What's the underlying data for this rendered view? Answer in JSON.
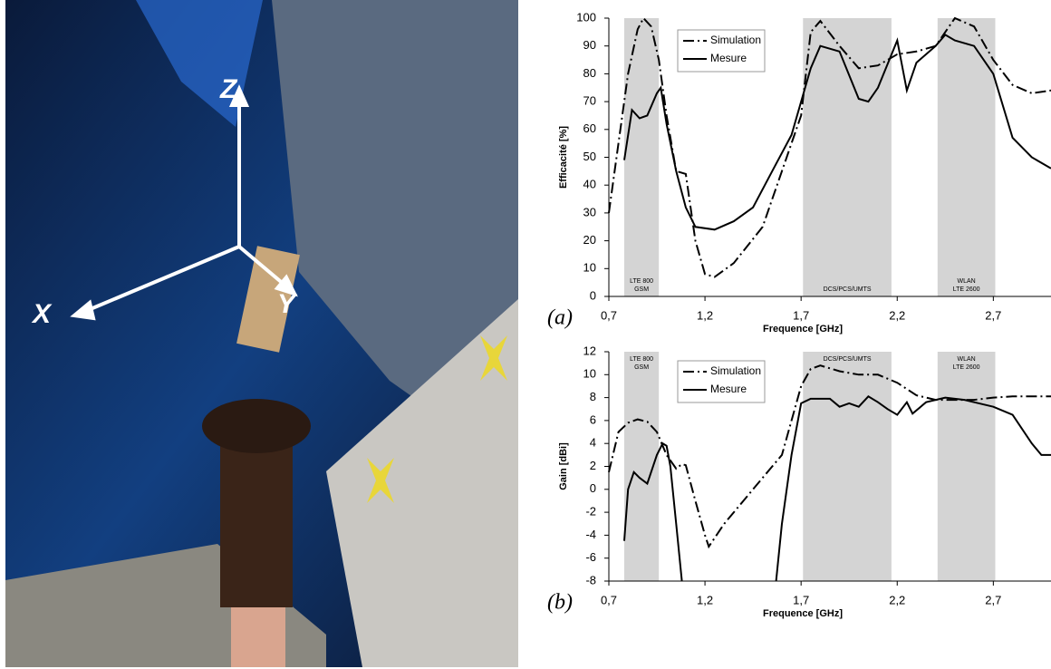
{
  "photo": {
    "axis_labels": [
      "Z",
      "X",
      "Y"
    ]
  },
  "chart_data": [
    {
      "type": "line",
      "panel_label": "(a)",
      "y_label": "Efficacité [%]",
      "x_label": "Frequence [GHz]",
      "xlim": [
        0.7,
        3.0
      ],
      "xticks": [
        {
          "value": 0.7,
          "label": "0,7"
        },
        {
          "value": 1.2,
          "label": "1,2"
        },
        {
          "value": 1.7,
          "label": "1,7"
        },
        {
          "value": 2.2,
          "label": "2,2"
        },
        {
          "value": 2.7,
          "label": "2,7"
        }
      ],
      "ylim": [
        0,
        100
      ],
      "yticks": [
        0,
        10,
        20,
        30,
        40,
        50,
        60,
        70,
        80,
        90,
        100
      ],
      "grid": false,
      "band_label_position": "bottom",
      "band_color": "#d4d4d4",
      "bands": [
        {
          "range": [
            0.78,
            0.96
          ],
          "label": [
            "LTE 800",
            "GSM"
          ]
        },
        {
          "range": [
            1.71,
            2.17
          ],
          "label": [
            "DCS/PCS/UMTS"
          ]
        },
        {
          "range": [
            2.41,
            2.71
          ],
          "label": [
            "WLAN",
            "LTE 2600"
          ]
        }
      ],
      "series": [
        {
          "name": "Simulation",
          "color": "#000000",
          "style": "dash-dot",
          "x": [
            0.7,
            0.75,
            0.8,
            0.85,
            0.88,
            0.92,
            0.96,
            1.0,
            1.05,
            1.1,
            1.15,
            1.2,
            1.25,
            1.35,
            1.5,
            1.6,
            1.7,
            1.75,
            1.8,
            1.9,
            2.0,
            2.1,
            2.2,
            2.3,
            2.4,
            2.5,
            2.6,
            2.7,
            2.8,
            2.9,
            3.0
          ],
          "values": [
            30,
            55,
            80,
            96,
            100,
            97,
            85,
            65,
            45,
            44,
            20,
            8,
            7,
            12,
            25,
            45,
            65,
            95,
            99,
            90,
            82,
            83,
            87,
            88,
            90,
            100,
            97,
            85,
            76,
            73,
            74
          ]
        },
        {
          "name": "Mesure",
          "color": "#000000",
          "style": "solid",
          "x": [
            0.78,
            0.82,
            0.86,
            0.9,
            0.95,
            0.97,
            1.0,
            1.05,
            1.1,
            1.15,
            1.25,
            1.35,
            1.45,
            1.55,
            1.65,
            1.75,
            1.8,
            1.9,
            2.0,
            2.05,
            2.1,
            2.2,
            2.25,
            2.3,
            2.4,
            2.45,
            2.5,
            2.6,
            2.7,
            2.8,
            2.9,
            3.0
          ],
          "values": [
            49,
            67,
            64,
            65,
            73,
            75,
            62,
            45,
            32,
            25,
            24,
            27,
            32,
            45,
            58,
            82,
            90,
            88,
            71,
            70,
            75,
            92,
            74,
            84,
            90,
            94,
            92,
            90,
            80,
            57,
            50,
            46
          ]
        }
      ]
    },
    {
      "type": "line",
      "panel_label": "(b)",
      "y_label": "Gain [dBi]",
      "x_label": "Frequence [GHz]",
      "xlim": [
        0.7,
        3.0
      ],
      "xticks": [
        {
          "value": 0.7,
          "label": "0,7"
        },
        {
          "value": 1.2,
          "label": "1,2"
        },
        {
          "value": 1.7,
          "label": "1,7"
        },
        {
          "value": 2.2,
          "label": "2,2"
        },
        {
          "value": 2.7,
          "label": "2,7"
        }
      ],
      "ylim": [
        -8,
        12
      ],
      "yticks": [
        -8,
        -6,
        -4,
        -2,
        0,
        2,
        4,
        6,
        8,
        10,
        12
      ],
      "grid": false,
      "band_label_position": "top",
      "band_color": "#d4d4d4",
      "bands": [
        {
          "range": [
            0.78,
            0.96
          ],
          "label": [
            "LTE 800",
            "GSM"
          ]
        },
        {
          "range": [
            1.71,
            2.17
          ],
          "label": [
            "DCS/PCS/UMTS"
          ]
        },
        {
          "range": [
            2.41,
            2.71
          ],
          "label": [
            "WLAN",
            "LTE 2600"
          ]
        }
      ],
      "series": [
        {
          "name": "Simulation",
          "color": "#000000",
          "style": "dash-dot",
          "x": [
            0.7,
            0.75,
            0.8,
            0.85,
            0.9,
            0.95,
            1.0,
            1.05,
            1.08,
            1.1,
            1.15,
            1.2,
            1.22,
            1.3,
            1.4,
            1.5,
            1.6,
            1.7,
            1.75,
            1.8,
            1.9,
            2.0,
            2.1,
            2.2,
            2.3,
            2.4,
            2.5,
            2.6,
            2.7,
            2.8,
            2.9,
            3.0
          ],
          "values": [
            1.5,
            5,
            5.8,
            6.1,
            5.9,
            5,
            3,
            1.8,
            2.2,
            2.1,
            -1,
            -4,
            -5,
            -3,
            -1,
            1,
            3,
            9,
            10.5,
            10.8,
            10.3,
            10,
            10,
            9.3,
            8.2,
            7.8,
            7.8,
            7.8,
            8,
            8.1,
            8.1,
            8.1
          ]
        },
        {
          "name": "Mesure",
          "color": "#000000",
          "style": "solid",
          "x": [
            0.78,
            0.8,
            0.83,
            0.86,
            0.9,
            0.95,
            0.98,
            1.0,
            1.02,
            1.05,
            1.08,
            null,
            1.57,
            1.6,
            1.65,
            1.7,
            1.75,
            1.85,
            1.9,
            1.95,
            2.0,
            2.05,
            2.1,
            2.15,
            2.2,
            2.25,
            2.28,
            2.35,
            2.45,
            2.55,
            2.65,
            2.7,
            2.8,
            2.9,
            2.95,
            3.0
          ],
          "values": [
            -4.5,
            0,
            1.5,
            1,
            0.5,
            3,
            4,
            3.8,
            2,
            -3,
            -8,
            null,
            -8,
            -3,
            3,
            7.5,
            7.9,
            7.9,
            7.2,
            7.5,
            7.2,
            8.1,
            7.6,
            7,
            6.5,
            7.6,
            6.6,
            7.6,
            8,
            7.8,
            7.4,
            7.2,
            6.5,
            4,
            3,
            3
          ]
        }
      ]
    }
  ]
}
